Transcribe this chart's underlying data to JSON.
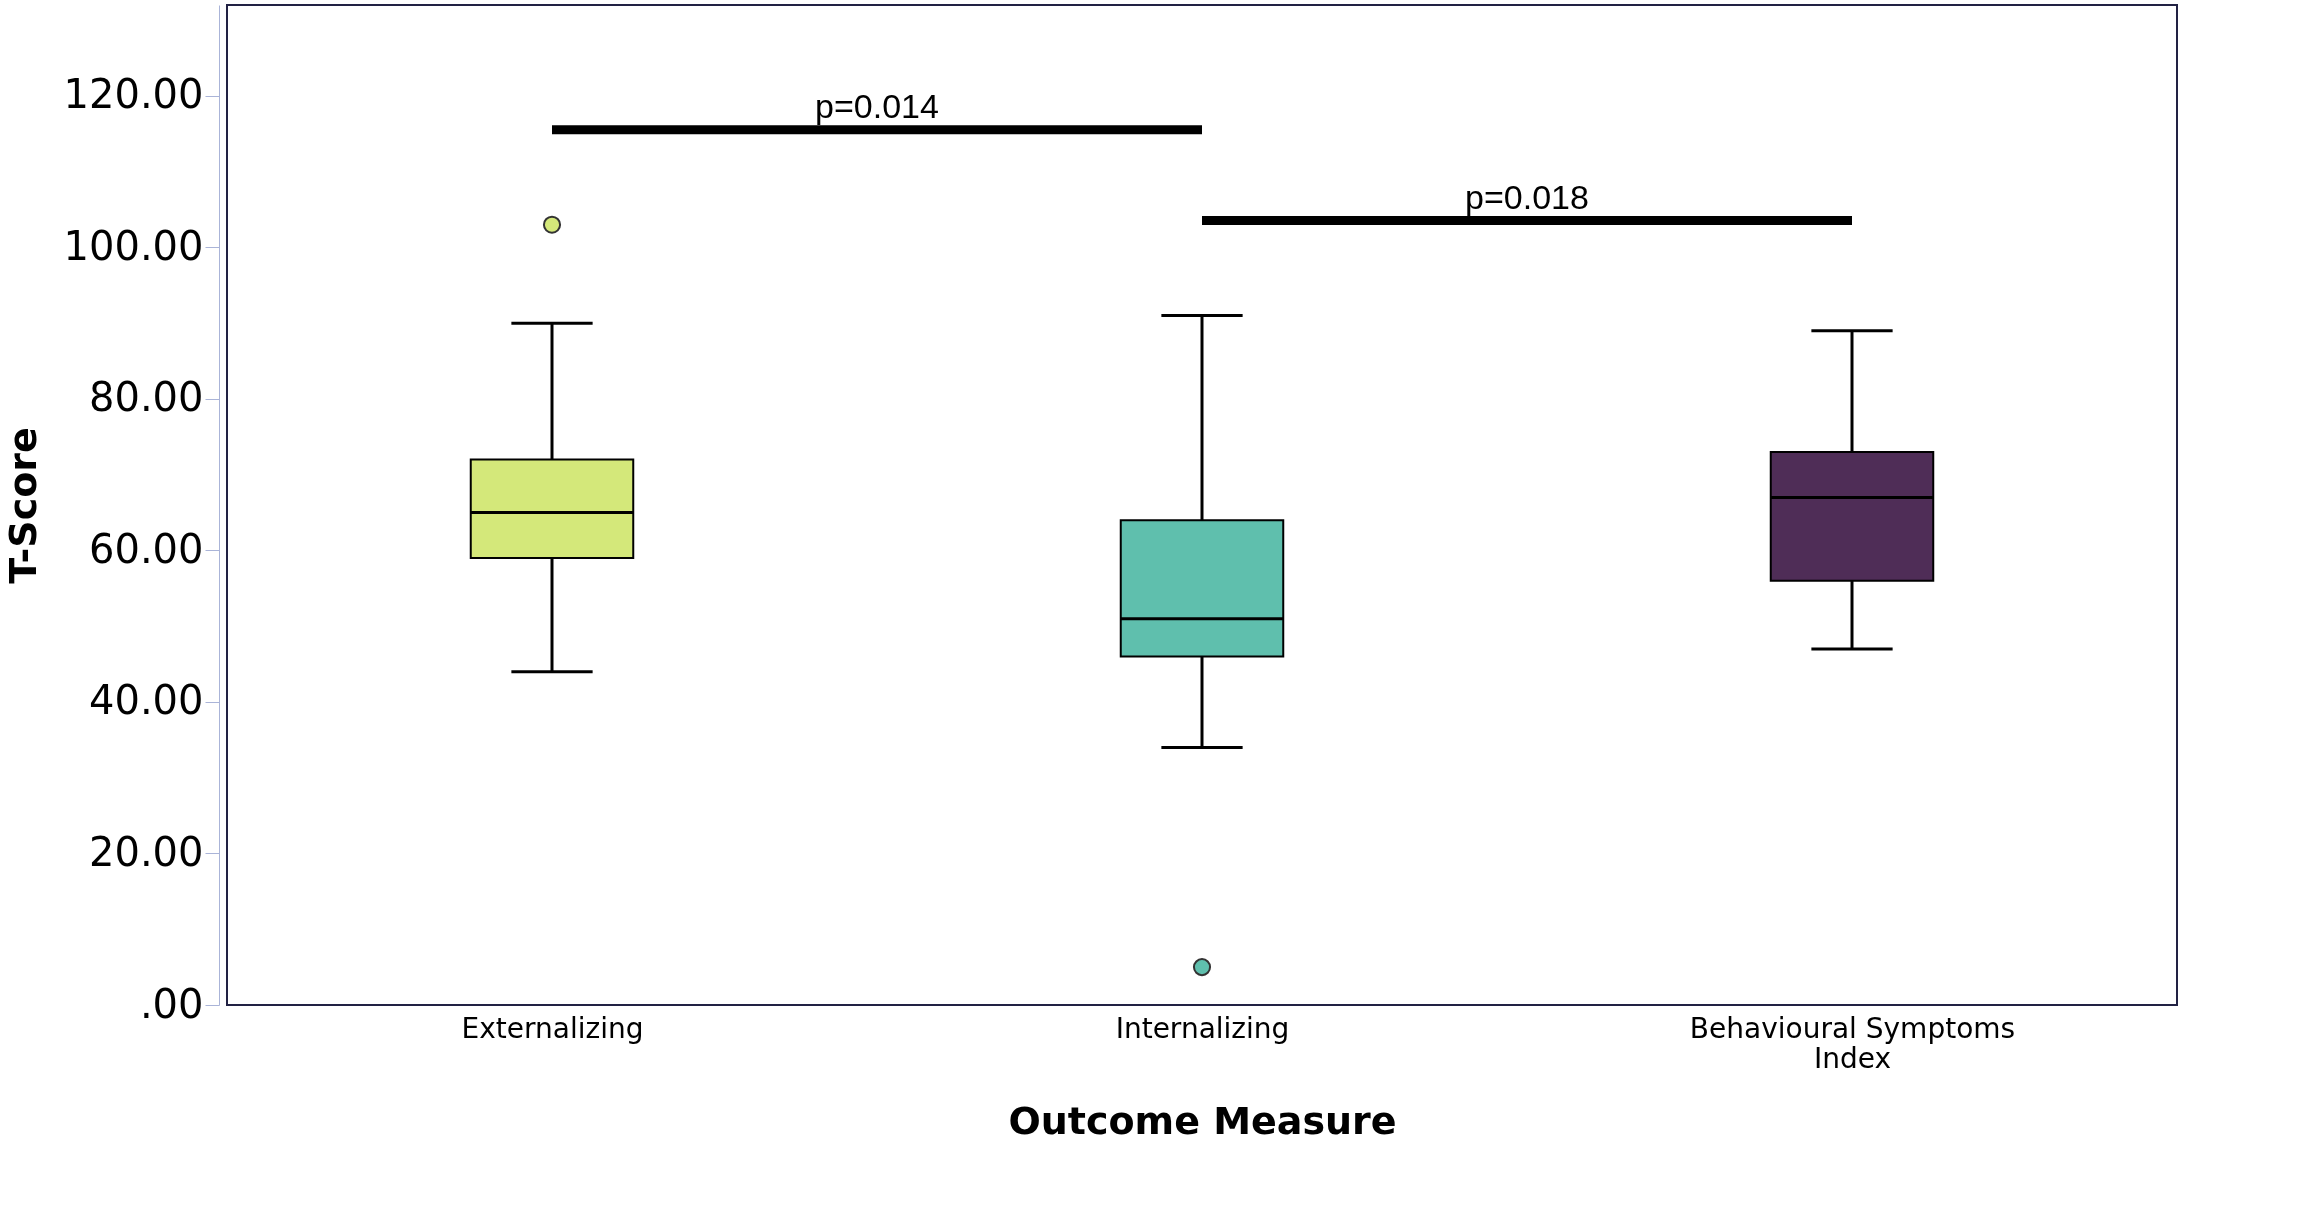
{
  "chart_data": {
    "type": "box",
    "xlabel": "Outcome Measure",
    "ylabel": "T-Score",
    "categories": [
      "Externalizing",
      "Internalizing",
      "Behavioural Symptoms Index"
    ],
    "colors": [
      "#d4e87a",
      "#5fbfad",
      "#4f2d57"
    ],
    "boxes": [
      {
        "low": 44,
        "q1": 59,
        "median": 65,
        "q3": 72,
        "high": 90,
        "outliers": [
          103
        ]
      },
      {
        "low": 34,
        "q1": 46,
        "median": 51,
        "q3": 64,
        "high": 91,
        "outliers": [
          5
        ]
      },
      {
        "low": 47,
        "q1": 56,
        "median": 67,
        "q3": 73,
        "high": 89
      }
    ],
    "ylim": [
      0,
      132
    ],
    "yticks": [
      {
        "value": 0,
        "label": ".00"
      },
      {
        "value": 20,
        "label": "20.00"
      },
      {
        "value": 40,
        "label": "40.00"
      },
      {
        "value": 60,
        "label": "60.00"
      },
      {
        "value": 80,
        "label": "80.00"
      },
      {
        "value": 100,
        "label": "100.00"
      },
      {
        "value": 120,
        "label": "120.00"
      }
    ],
    "annotations": [
      "p=0.014",
      "p=0.018"
    ],
    "grid": false
  }
}
